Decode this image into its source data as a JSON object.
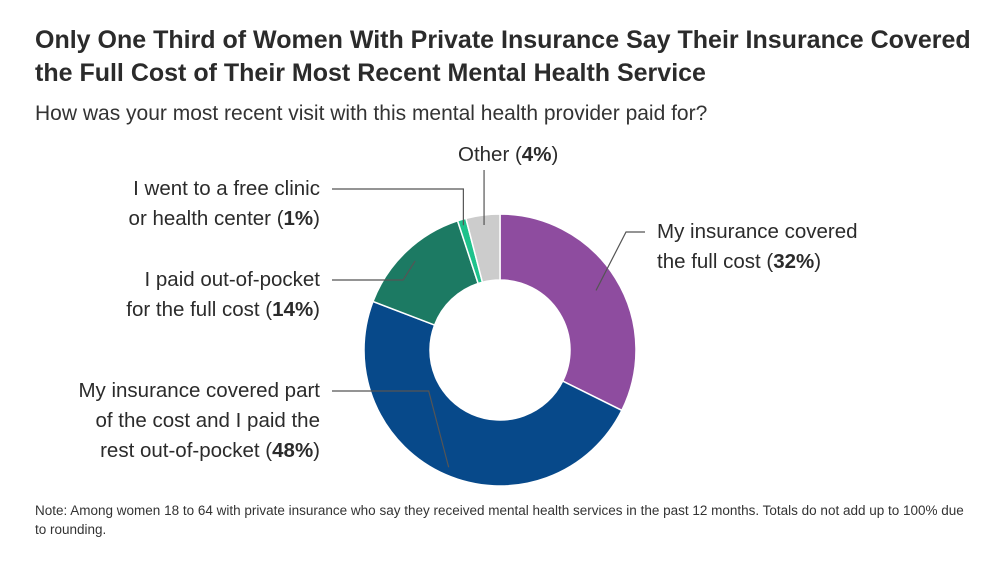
{
  "title": "Only One Third of Women With Private Insurance Say Their Insurance Covered the Full Cost of Their Most Recent Mental Health Service",
  "subtitle": "How was your most recent visit with this mental health provider paid for?",
  "note": "Note: Among women 18 to 64 with private insurance who say they received mental health services in the past 12 months. Totals do not add up to 100% due to rounding.",
  "chart_data": {
    "type": "pie",
    "donut": true,
    "title": "Only One Third of Women With Private Insurance Say Their Insurance Covered the Full Cost of Their Most Recent Mental Health Service",
    "subtitle": "How was your most recent visit with this mental health provider paid for?",
    "unit": "%",
    "slices": [
      {
        "label": "My insurance covered the full cost",
        "value": 32,
        "color": "#8e4c9f"
      },
      {
        "label": "My insurance covered part of the cost and I paid the rest out-of-pocket",
        "value": 48,
        "color": "#07498a"
      },
      {
        "label": "I paid out-of-pocket for the full cost",
        "value": 14,
        "color": "#1c7a63"
      },
      {
        "label": "I went to a free clinic or health center",
        "value": 1,
        "color": "#1ec28c"
      },
      {
        "label": "Other",
        "value": 4,
        "color": "#cccccc"
      }
    ]
  },
  "labels": {
    "full_cost": {
      "line1": "My insurance covered",
      "line2_prefix": "the full cost (",
      "value": "32%",
      "suffix": ")"
    },
    "part_cost": {
      "line1": "My insurance covered part",
      "line2": "of the cost and I paid the",
      "line3_prefix": "rest out-of-pocket (",
      "value": "48%",
      "suffix": ")"
    },
    "oop": {
      "line1": "I paid out-of-pocket",
      "line2_prefix": "for the full cost (",
      "value": "14%",
      "suffix": ")"
    },
    "free_clinic": {
      "line1": "I went to a free clinic",
      "line2_prefix": "or health center (",
      "value": "1%",
      "suffix": ")"
    },
    "other": {
      "line1_prefix": "Other (",
      "value": "4%",
      "suffix": ")"
    }
  },
  "colors": {
    "leader_line": "#555555",
    "slice_border": "#ffffff"
  }
}
